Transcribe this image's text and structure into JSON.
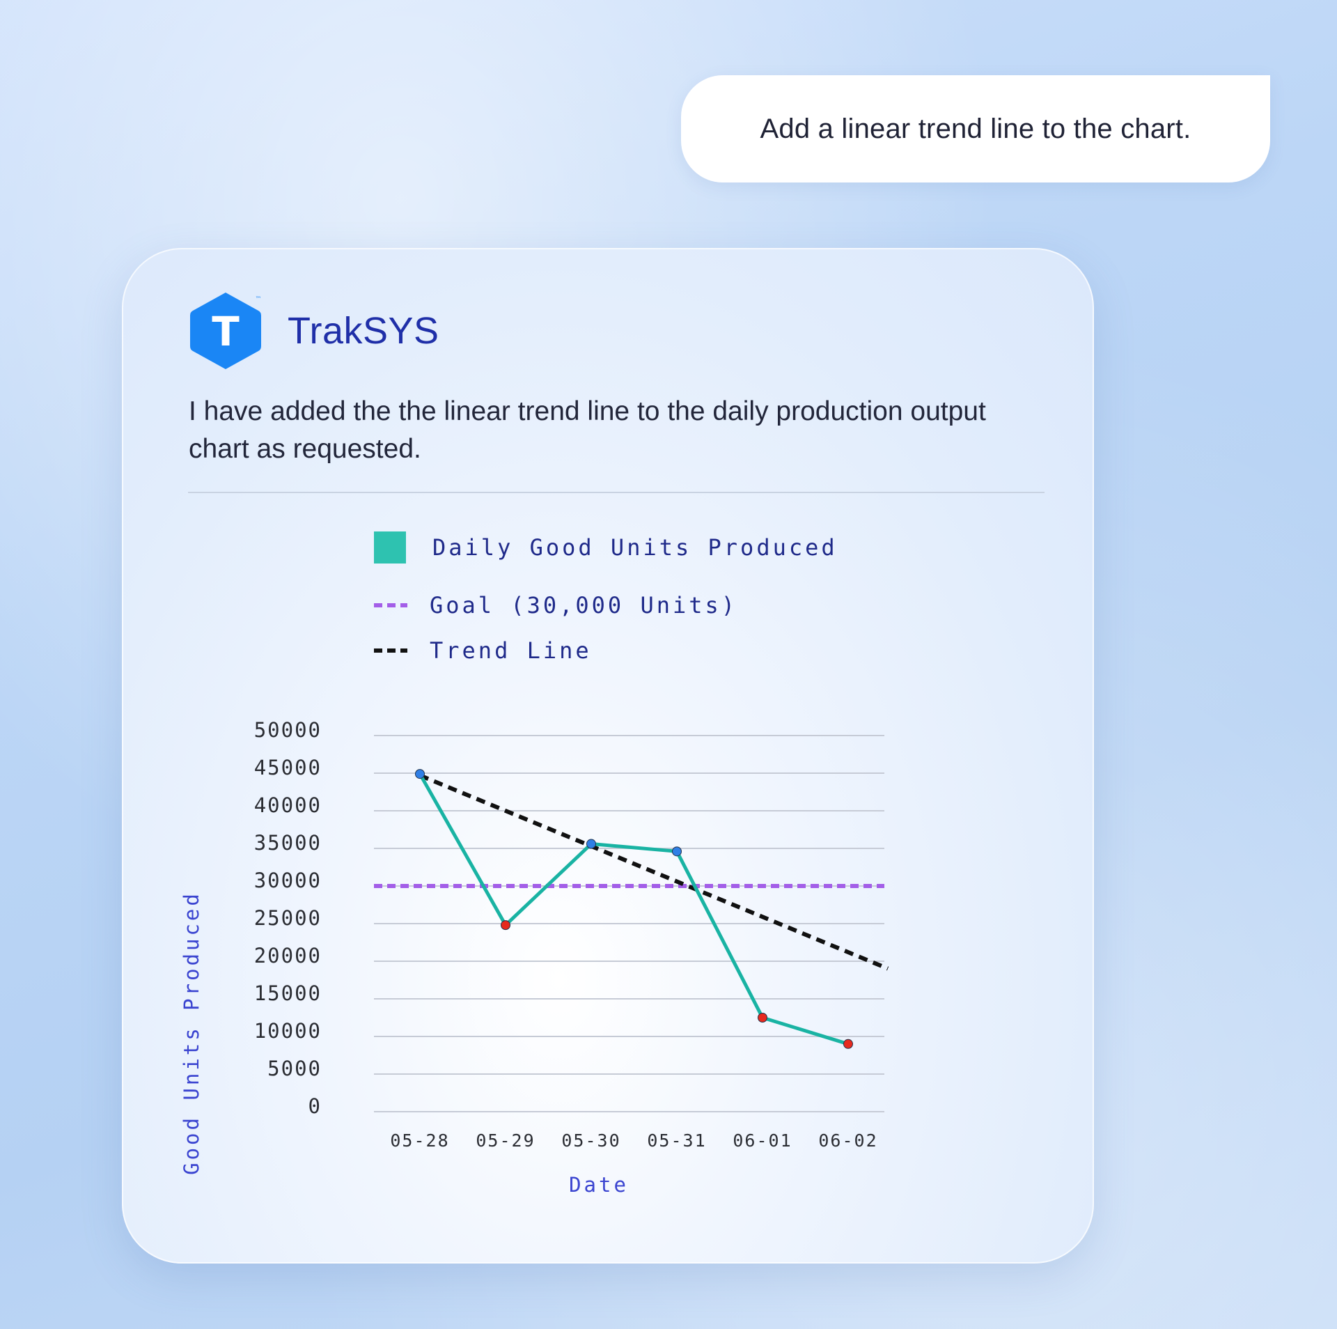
{
  "user_message": "Add a linear trend line to the chart.",
  "assistant": {
    "brand_name": "TrakSYS",
    "logo_letter": "T",
    "logo_mark": "™",
    "logo_color": "#1a86f5",
    "message": "I have added the the linear trend line to the daily production output chart as requested."
  },
  "chart_data": {
    "type": "line",
    "categories": [
      "05-28",
      "05-29",
      "05-30",
      "05-31",
      "06-01",
      "06-02"
    ],
    "series": [
      {
        "name": "Daily Good Units Produced",
        "values": [
          44900,
          24800,
          35600,
          34600,
          12500,
          9000
        ],
        "color": "#19b3a3"
      },
      {
        "name": "Goal (30,000 Units)",
        "values": [
          30000,
          30000,
          30000,
          30000,
          30000,
          30000
        ],
        "color": "#a35ee8"
      },
      {
        "name": "Trend Line",
        "values": [
          44700,
          40000,
          35300,
          30600,
          25900,
          21200
        ],
        "color": "#111111"
      }
    ],
    "point_colors": [
      "#2f7fe6",
      "#e62a1e",
      "#2f7fe6",
      "#2f7fe6",
      "#e62a1e",
      "#e62a1e"
    ],
    "legend": [
      {
        "label": "Daily Good Units Produced",
        "marker": "square",
        "color": "#2ec2b0"
      },
      {
        "label": "Goal (30,000 Units)",
        "marker": "dash",
        "color": "#a35ee8"
      },
      {
        "label": "Trend Line",
        "marker": "dash",
        "color": "#111111"
      }
    ],
    "legend_position": "top",
    "xlabel": "Date",
    "ylabel": "Good Units Produced",
    "ylim": [
      0,
      50000
    ],
    "yticks": [
      "50000",
      "45000",
      "40000",
      "35000",
      "30000",
      "25000",
      "20000",
      "15000",
      "10000",
      "5000",
      "0"
    ],
    "grid": true
  }
}
